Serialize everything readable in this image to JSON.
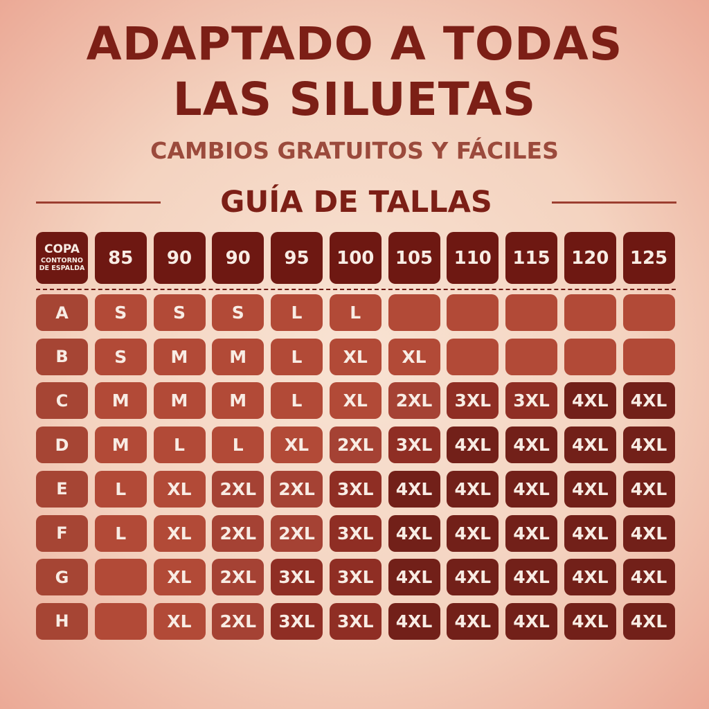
{
  "title_line1": "ADAPTADO A TODAS",
  "title_line2": "LAS SILUETAS",
  "subtitle": "CAMBIOS GRATUITOS Y FÁCILES",
  "guide_title": "GUÍA DE TALLAS",
  "corner": {
    "main": "COPA",
    "sub_line1": "CONTORNO",
    "sub_line2": "DE ESPALDA"
  },
  "columns": [
    "85",
    "90",
    "90",
    "95",
    "100",
    "105",
    "110",
    "115",
    "120",
    "125"
  ],
  "rows": [
    {
      "cup": "A",
      "sizes": [
        "S",
        "S",
        "S",
        "L",
        "L",
        "",
        "",
        "",
        "",
        ""
      ]
    },
    {
      "cup": "B",
      "sizes": [
        "S",
        "M",
        "M",
        "L",
        "XL",
        "XL",
        "",
        "",
        "",
        ""
      ]
    },
    {
      "cup": "C",
      "sizes": [
        "M",
        "M",
        "M",
        "L",
        "XL",
        "2XL",
        "3XL",
        "3XL",
        "4XL",
        "4XL"
      ]
    },
    {
      "cup": "D",
      "sizes": [
        "M",
        "L",
        "L",
        "XL",
        "2XL",
        "3XL",
        "4XL",
        "4XL",
        "4XL",
        "4XL"
      ]
    },
    {
      "cup": "E",
      "sizes": [
        "L",
        "XL",
        "2XL",
        "2XL",
        "3XL",
        "4XL",
        "4XL",
        "4XL",
        "4XL",
        "4XL"
      ]
    },
    {
      "cup": "F",
      "sizes": [
        "L",
        "XL",
        "2XL",
        "2XL",
        "3XL",
        "4XL",
        "4XL",
        "4XL",
        "4XL",
        "4XL"
      ]
    },
    {
      "cup": "G",
      "sizes": [
        "",
        "XL",
        "2XL",
        "3XL",
        "3XL",
        "4XL",
        "4XL",
        "4XL",
        "4XL",
        "4XL"
      ]
    },
    {
      "cup": "H",
      "sizes": [
        "",
        "XL",
        "2XL",
        "3XL",
        "3XL",
        "4XL",
        "4XL",
        "4XL",
        "4XL",
        "4XL"
      ]
    }
  ],
  "colors": {
    "title": "#7c1f16",
    "subtitle": "#9b4a3c",
    "header": "#6e1812",
    "cell_light": "#b24a37",
    "cell_dark": "#722019"
  }
}
